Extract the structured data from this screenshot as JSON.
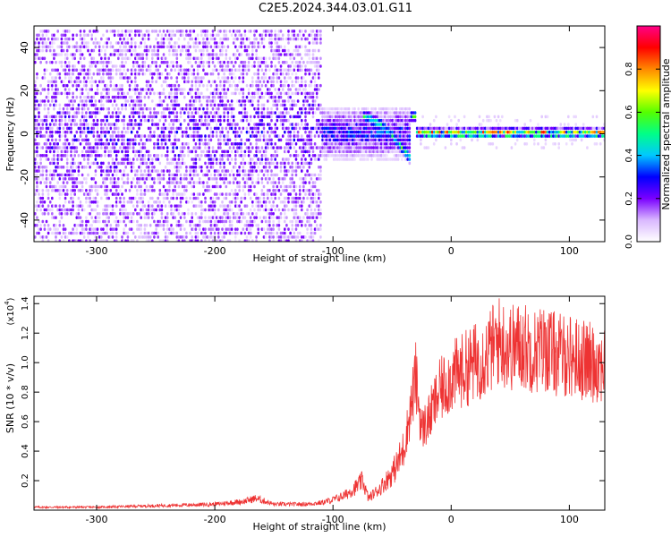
{
  "title": "C2E5.2024.344.03.01.G11",
  "chart_data": [
    {
      "type": "heatmap",
      "xlabel": "Height of straight line (km)",
      "ylabel": "Frequency (Hz)",
      "xlim": [
        -353,
        130
      ],
      "ylim": [
        -50,
        50
      ],
      "xticks": [
        -300,
        -200,
        -100,
        0,
        100
      ],
      "yticks": [
        -40,
        -20,
        0,
        20,
        40
      ],
      "colorbar": {
        "label": "Normalized spectral amplitude",
        "range": [
          0,
          1
        ],
        "ticks": [
          0.0,
          0.2,
          0.4,
          0.6,
          0.8
        ],
        "tick_labels": [
          "0.0",
          "0.2",
          "0.4",
          "0.6",
          "0.8"
        ],
        "colormap": [
          "#ffffff",
          "#d9b8ff",
          "#7a00ff",
          "#0000ff",
          "#00c8ff",
          "#00ff88",
          "#55ff00",
          "#ffff00",
          "#ff8800",
          "#ff0000",
          "#ff0088"
        ]
      },
      "features": [
        {
          "region": [
            -353,
            -110
          ],
          "frequency_spread": [
            -50,
            48
          ],
          "amplitude": 0.15
        },
        {
          "region": [
            -110,
            -35
          ],
          "frequency_center": 0,
          "frequency_spread": [
            -15,
            12
          ],
          "amplitude": 0.3
        },
        {
          "region": [
            -75,
            -30
          ],
          "frequency_track": [
            [
              -75,
              8
            ],
            [
              -60,
              4
            ],
            [
              -45,
              -5
            ],
            [
              -35,
              -12
            ]
          ],
          "amplitude": 0.55
        },
        {
          "region": [
            -30,
            130
          ],
          "frequency_center": 0,
          "frequency_spread": [
            -3,
            3
          ],
          "amplitude": 0.8
        }
      ]
    },
    {
      "type": "line",
      "xlabel": "Height of straight line (km)",
      "ylabel": "SNR (10 * v/v)",
      "yscale_label": "(x10",
      "yscale_exp": "4",
      "xlim": [
        -353,
        130
      ],
      "ylim": [
        0,
        1.45
      ],
      "xticks": [
        -300,
        -200,
        -100,
        0,
        100
      ],
      "yticks": [
        0.2,
        0.4,
        0.6,
        0.8,
        1.0,
        1.2,
        1.4
      ],
      "ytick_labels": [
        "0.2",
        "0.4",
        "0.6",
        "0.8",
        "1.0",
        "1.2",
        "1.4"
      ],
      "color": "#ee3333",
      "x": [
        -353,
        -300,
        -250,
        -200,
        -175,
        -165,
        -150,
        -125,
        -110,
        -100,
        -90,
        -80,
        -75,
        -70,
        -60,
        -50,
        -45,
        -40,
        -35,
        -30,
        -25,
        -20,
        -15,
        -10,
        -5,
        0,
        10,
        20,
        30,
        40,
        50,
        60,
        70,
        80,
        90,
        100,
        110,
        120,
        130
      ],
      "y": [
        0.02,
        0.02,
        0.03,
        0.04,
        0.06,
        0.08,
        0.04,
        0.04,
        0.05,
        0.07,
        0.1,
        0.16,
        0.2,
        0.08,
        0.15,
        0.25,
        0.32,
        0.42,
        0.65,
        0.9,
        0.55,
        0.6,
        0.7,
        0.8,
        0.85,
        0.9,
        0.95,
        1.0,
        1.05,
        1.15,
        1.1,
        1.12,
        1.08,
        1.1,
        1.05,
        1.05,
        1.02,
        1.0,
        1.0
      ]
    }
  ]
}
